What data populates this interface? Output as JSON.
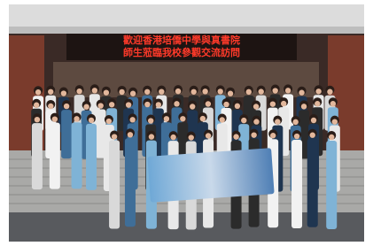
{
  "sign": {
    "lines": [
      "歡迎香港培僑中學與真書院",
      "師生蒞臨我校參觀交流訪問"
    ]
  }
}
